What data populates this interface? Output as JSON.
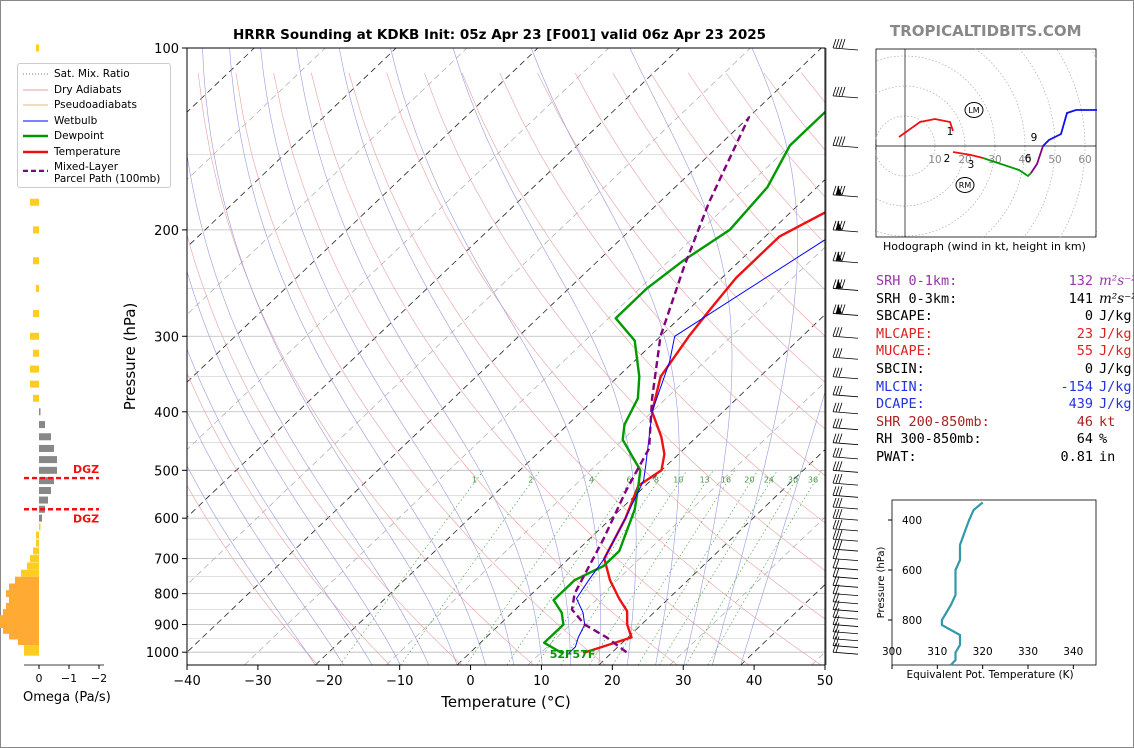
{
  "title": "HRRR Sounding at KDKB Init: 05z Apr 23 [F001] valid 06z Apr 23 2025",
  "brand": "TROPICALTIDBITS.COM",
  "chart_data": {
    "type": "line",
    "xlabel": "Temperature (°C)",
    "ylabel": "Pressure (hPa)",
    "xlim": [
      -40,
      50
    ],
    "ylim": [
      1050,
      100
    ],
    "y_scale": "log",
    "xticks": [
      -40,
      -30,
      -20,
      -10,
      0,
      10,
      20,
      30,
      40,
      50
    ],
    "yticks": [
      100,
      200,
      300,
      400,
      500,
      600,
      700,
      800,
      900,
      1000
    ],
    "grid": true,
    "legend_position": "top-left",
    "legend": [
      {
        "name": "Sat. Mix. Ratio",
        "color": "#777777",
        "style": "dotted"
      },
      {
        "name": "Dry Adiabats",
        "color": "#e8a0a0",
        "style": "solid"
      },
      {
        "name": "Pseudoadiabats",
        "color": "#d8c070",
        "style": "solid"
      },
      {
        "name": "Wetbulb",
        "color": "#0000ff",
        "style": "solid"
      },
      {
        "name": "Dewpoint",
        "color": "#009900",
        "style": "solid"
      },
      {
        "name": "Temperature",
        "color": "#ee1111",
        "style": "solid"
      },
      {
        "name": "Mixed-Layer\nParcel Path (100mb)",
        "color": "#800080",
        "style": "dashed"
      }
    ],
    "series": [
      {
        "name": "Temperature",
        "color": "#ee1111",
        "points": [
          [
            16,
            1003
          ],
          [
            20.5,
            945
          ],
          [
            18,
            900
          ],
          [
            16,
            855
          ],
          [
            13,
            815
          ],
          [
            9,
            760
          ],
          [
            5,
            700
          ],
          [
            2,
            600
          ],
          [
            -1,
            530
          ],
          [
            0,
            500
          ],
          [
            -2,
            470
          ],
          [
            -5,
            440
          ],
          [
            -10,
            400
          ],
          [
            -14,
            350
          ],
          [
            -16,
            300
          ],
          [
            -17,
            270
          ],
          [
            -18,
            240
          ],
          [
            -18,
            205
          ],
          [
            -13,
            175
          ],
          [
            -5,
            150
          ],
          [
            -2,
            128
          ],
          [
            5,
            100
          ]
        ]
      },
      {
        "name": "Dewpoint",
        "color": "#009900",
        "points": [
          [
            13,
            1003
          ],
          [
            9,
            965
          ],
          [
            9,
            900
          ],
          [
            7,
            860
          ],
          [
            4,
            820
          ],
          [
            4,
            785
          ],
          [
            4,
            760
          ],
          [
            6,
            720
          ],
          [
            6,
            680
          ],
          [
            2,
            580
          ],
          [
            -1,
            530
          ],
          [
            -3,
            500
          ],
          [
            -10,
            445
          ],
          [
            -12,
            420
          ],
          [
            -14,
            380
          ],
          [
            -17,
            350
          ],
          [
            -23,
            305
          ],
          [
            -29,
            280
          ],
          [
            -29,
            250
          ],
          [
            -28,
            225
          ],
          [
            -26,
            200
          ],
          [
            -27,
            170
          ],
          [
            -30,
            145
          ],
          [
            -30,
            115
          ],
          [
            -26,
            100
          ]
        ]
      },
      {
        "name": "Wetbulb",
        "color": "#0000ff",
        "points": [
          [
            14,
            1003
          ],
          [
            14,
            980
          ],
          [
            13,
            945
          ],
          [
            12,
            900
          ],
          [
            10,
            860
          ],
          [
            7,
            815
          ],
          [
            6,
            760
          ],
          [
            5,
            700
          ],
          [
            2,
            600
          ],
          [
            -1,
            520
          ],
          [
            -3,
            490
          ],
          [
            -10,
            400
          ],
          [
            -15,
            330
          ],
          [
            -18,
            300
          ],
          [
            -5,
            150
          ],
          [
            -1,
            128
          ],
          [
            4,
            100
          ]
        ]
      },
      {
        "name": "Mixed-Layer\nParcel Path (100mb)",
        "color": "#800080",
        "style": "dashed",
        "points": [
          [
            22,
            1000
          ],
          [
            17,
            945
          ],
          [
            12,
            900
          ],
          [
            8,
            850
          ],
          [
            6,
            800
          ],
          [
            2,
            650
          ],
          [
            -2,
            540
          ],
          [
            -5,
            460
          ],
          [
            -12,
            380
          ],
          [
            -20,
            300
          ],
          [
            -27,
            230
          ],
          [
            -33,
            180
          ],
          [
            -40,
            130
          ]
        ]
      }
    ],
    "surface_label": "52F57F",
    "omega": {
      "xlabel": "Omega (Pa/s)",
      "xticks": [
        0,
        -1,
        -2
      ],
      "dgz_label": "DGZ",
      "dgz_levels": [
        515,
        580
      ],
      "values": [
        [
          1000,
          0.5
        ],
        [
          980,
          0.5
        ],
        [
          960,
          0.7
        ],
        [
          940,
          1.0
        ],
        [
          920,
          1.2
        ],
        [
          900,
          1.3
        ],
        [
          880,
          1.3
        ],
        [
          860,
          1.2
        ],
        [
          840,
          1.1
        ],
        [
          820,
          1.0
        ],
        [
          800,
          1.1
        ],
        [
          780,
          1.0
        ],
        [
          760,
          0.8
        ],
        [
          740,
          0.6
        ],
        [
          720,
          0.4
        ],
        [
          700,
          0.3
        ],
        [
          680,
          0.2
        ],
        [
          660,
          0.1
        ],
        [
          640,
          0.1
        ],
        [
          620,
          0.0
        ],
        [
          600,
          -0.1
        ],
        [
          580,
          -0.2
        ],
        [
          560,
          -0.3
        ],
        [
          540,
          -0.4
        ],
        [
          520,
          -0.5
        ],
        [
          500,
          -0.6
        ],
        [
          480,
          -0.6
        ],
        [
          460,
          -0.5
        ],
        [
          440,
          -0.4
        ],
        [
          420,
          -0.2
        ],
        [
          400,
          -0.05
        ],
        [
          380,
          0.2
        ],
        [
          360,
          0.3
        ],
        [
          340,
          0.3
        ],
        [
          320,
          0.2
        ],
        [
          300,
          0.3
        ],
        [
          275,
          0.2
        ],
        [
          250,
          0.1
        ],
        [
          225,
          0.2
        ],
        [
          200,
          0.2
        ],
        [
          180,
          0.3
        ],
        [
          160,
          0.3
        ],
        [
          140,
          0.3
        ],
        [
          120,
          0.2
        ],
        [
          100,
          0.1
        ]
      ]
    },
    "wind_barb_levels": [
      100,
      120,
      145,
      175,
      200,
      225,
      250,
      275,
      300,
      325,
      350,
      375,
      400,
      425,
      450,
      475,
      500,
      525,
      550,
      575,
      600,
      625,
      650,
      675,
      700,
      725,
      750,
      775,
      800,
      825,
      850,
      875,
      900,
      925,
      950,
      975,
      1000
    ]
  },
  "hodograph": {
    "caption": "Hodograph (wind in kt, height in km)",
    "ring_labels": [
      "10",
      "20",
      "30",
      "40",
      "50",
      "60"
    ],
    "markers": {
      "lm": "LM",
      "rm": "RM"
    },
    "height_labels": [
      "1",
      "2",
      "3",
      "6",
      "9"
    ],
    "segments": [
      {
        "color": "#ee1111",
        "points": [
          [
            -2,
            3
          ],
          [
            5,
            8
          ],
          [
            10,
            9
          ],
          [
            15,
            8
          ],
          [
            16,
            5
          ]
        ]
      },
      {
        "color": "#ee1111",
        "points": [
          [
            16,
            -2
          ],
          [
            22,
            -3
          ],
          [
            26,
            -4
          ]
        ]
      },
      {
        "color": "#009900",
        "points": [
          [
            26,
            -4
          ],
          [
            32,
            -6
          ],
          [
            38,
            -8
          ],
          [
            41,
            -10
          ],
          [
            42,
            -9
          ]
        ]
      },
      {
        "color": "#800080",
        "points": [
          [
            42,
            -9
          ],
          [
            44,
            -6
          ],
          [
            45,
            -3
          ],
          [
            46,
            0
          ]
        ]
      },
      {
        "color": "#1010ee",
        "points": [
          [
            46,
            0
          ],
          [
            48,
            2
          ],
          [
            52,
            4
          ],
          [
            54,
            11
          ],
          [
            57,
            12
          ],
          [
            62,
            12
          ],
          [
            66,
            12
          ]
        ]
      }
    ]
  },
  "parameters": [
    {
      "name": "SRH 0-1km:",
      "value": "132",
      "unit": "m²s⁻²",
      "color": "#9933aa"
    },
    {
      "name": "SRH 0-3km:",
      "value": "141",
      "unit": "m²s⁻²",
      "color": "#000000"
    },
    {
      "name": "SBCAPE:",
      "value": "0",
      "unit": "J/kg",
      "color": "#000000"
    },
    {
      "name": "MLCAPE:",
      "value": "23",
      "unit": "J/kg",
      "color": "#dd2222"
    },
    {
      "name": "MUCAPE:",
      "value": "55",
      "unit": "J/kg",
      "color": "#dd2222"
    },
    {
      "name": "SBCIN:",
      "value": "0",
      "unit": "J/kg",
      "color": "#000000"
    },
    {
      "name": "MLCIN:",
      "value": "-154",
      "unit": "J/kg",
      "color": "#2233dd"
    },
    {
      "name": "DCAPE:",
      "value": "439",
      "unit": "J/kg",
      "color": "#2233dd"
    },
    {
      "name": "SHR 200-850mb:",
      "value": "46",
      "unit": "kt",
      "color": "#aa2222"
    },
    {
      "name": "RH 300-850mb:",
      "value": "64",
      "unit": "%",
      "color": "#000000"
    },
    {
      "name": "PWAT:",
      "value": "0.81",
      "unit": "in",
      "color": "#000000"
    }
  ],
  "theta_e": {
    "xlabel": "Equivalent Pot. Temperature (K)",
    "ylabel": "Pressure (hPa)",
    "xlim": [
      300,
      345
    ],
    "ylim": [
      980,
      320
    ],
    "xticks": [
      300,
      310,
      320,
      330,
      340
    ],
    "yticks": [
      400,
      600,
      800
    ],
    "color": "#3399aa",
    "points": [
      [
        313,
        980
      ],
      [
        314,
        960
      ],
      [
        314,
        930
      ],
      [
        315,
        900
      ],
      [
        315,
        860
      ],
      [
        313,
        840
      ],
      [
        311,
        820
      ],
      [
        311,
        800
      ],
      [
        312,
        770
      ],
      [
        313,
        740
      ],
      [
        314,
        700
      ],
      [
        314,
        650
      ],
      [
        314,
        600
      ],
      [
        315,
        560
      ],
      [
        315,
        500
      ],
      [
        316,
        450
      ],
      [
        317,
        400
      ],
      [
        318,
        360
      ],
      [
        320,
        330
      ]
    ]
  }
}
